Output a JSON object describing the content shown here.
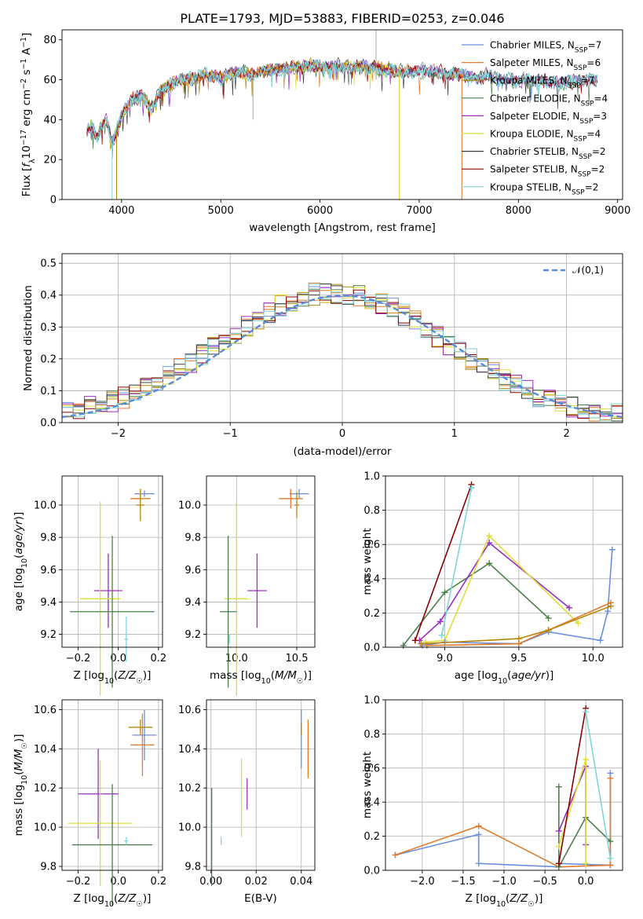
{
  "figure_title": "PLATE=1793, MJD=53883, FIBERID=0253, z=0.046",
  "series_colors": [
    "#6b8fdc",
    "#e27b2a",
    "#b8860b",
    "#4c7f4c",
    "#9b2dc0",
    "#dede3a",
    "#3c3c3c",
    "#8b0000",
    "#7fd6d6"
  ],
  "legend_entries": [
    {
      "label": "Chabrier MILES, N",
      "sub": "SSP",
      "suffix": "=7"
    },
    {
      "label": "Salpeter MILES, N",
      "sub": "SSP",
      "suffix": "=6"
    },
    {
      "label": "Kroupa MILES, N",
      "sub": "SSP",
      "suffix": "=7"
    },
    {
      "label": "Chabrier ELODIE, N",
      "sub": "SSP",
      "suffix": "=4"
    },
    {
      "label": "Salpeter ELODIE, N",
      "sub": "SSP",
      "suffix": "=3"
    },
    {
      "label": "Kroupa ELODIE, N",
      "sub": "SSP",
      "suffix": "=4"
    },
    {
      "label": "Chabrier STELIB, N",
      "sub": "SSP",
      "suffix": "=2"
    },
    {
      "label": "Salpeter STELIB, N",
      "sub": "SSP",
      "suffix": "=2"
    },
    {
      "label": "Kroupa STELIB, N",
      "sub": "SSP",
      "suffix": "=2"
    }
  ],
  "chart_data": [
    {
      "type": "line",
      "xlabel": "wavelength [Angstrom, rest frame]",
      "ylabel": "Flux [f_λ 10^-17 erg cm^-2 s^-1 A^-1]",
      "xlim": [
        3400,
        9050
      ],
      "ylim": [
        0,
        85
      ],
      "xticks": [
        "4000",
        "5000",
        "6000",
        "7000",
        "8000",
        "9000"
      ],
      "yticks": [
        "0",
        "20",
        "40",
        "60",
        "80"
      ],
      "spectrum": {
        "x": [
          3650,
          3700,
          3750,
          3800,
          3850,
          3900,
          3950,
          4000,
          4100,
          4200,
          4300,
          4400,
          4500,
          4600,
          4700,
          4800,
          4900,
          5000,
          5100,
          5200,
          5300,
          5400,
          5500,
          5600,
          5700,
          5800,
          5900,
          6000,
          6100,
          6200,
          6300,
          6400,
          6500,
          6600,
          6700,
          6800,
          6900,
          7000,
          7100,
          7200,
          7300,
          7400,
          7500,
          7600,
          7700,
          7800,
          7900,
          8000,
          8100,
          8200,
          8300,
          8400,
          8500,
          8600,
          8700,
          8800
        ],
        "y": [
          34,
          38,
          30,
          36,
          40,
          28,
          34,
          42,
          50,
          52,
          46,
          55,
          58,
          60,
          60,
          62,
          62,
          61,
          63,
          64,
          63,
          64,
          65,
          66,
          66,
          66,
          67,
          67,
          66,
          67,
          66,
          67,
          66,
          66,
          65,
          64,
          64,
          65,
          64,
          64,
          63,
          63,
          62,
          61,
          62,
          60,
          60,
          59,
          60,
          59,
          59,
          58,
          58,
          60,
          60,
          60
        ]
      },
      "legend_position": "upper right",
      "grid": false
    },
    {
      "type": "line",
      "xlabel": "(data-model)/error",
      "ylabel": "Normed distribution",
      "xlim": [
        -2.5,
        2.5
      ],
      "ylim": [
        0,
        0.53
      ],
      "xticks": [
        "−2",
        "−1",
        "0",
        "1",
        "2"
      ],
      "yticks": [
        "0.0",
        "0.1",
        "0.2",
        "0.3",
        "0.4",
        "0.5"
      ],
      "reference_curve": {
        "name": "𝒩(0,1)",
        "mean": 0,
        "sigma": 1
      },
      "legend_position": "upper right",
      "grid": true
    },
    {
      "type": "scatter",
      "xlabel": "Z [log10(Z/Z☉)]",
      "ylabel": "age [log10(age/yr)]",
      "xlim": [
        -0.28,
        0.22
      ],
      "ylim": [
        9.12,
        10.18
      ],
      "xticks": [
        "−0.2",
        "0.0",
        "0.2"
      ],
      "yticks": [
        "9.2",
        "9.4",
        "9.6",
        "9.8",
        "10.0"
      ],
      "grid": true,
      "errorbars": [
        {
          "series": 0,
          "x": 0.13,
          "xerr": 0.05,
          "y": 10.07,
          "yerr": 0.02
        },
        {
          "series": 1,
          "x": 0.11,
          "xerr": 0.05,
          "y": 10.04,
          "yerr": 0.06
        },
        {
          "series": 4,
          "x": -0.05,
          "xerr": 0.07,
          "y": 9.47,
          "yerr": 0.23
        },
        {
          "series": 5,
          "x": -0.09,
          "xerr": 0.1,
          "y": 9.42,
          "yerr": 0.6
        },
        {
          "series": 3,
          "x": -0.03,
          "xerr": 0.21,
          "y": 9.34,
          "yerr": 0.47
        },
        {
          "series": 8,
          "x": 0.04,
          "xerr": 0.01,
          "y": 9.17,
          "yerr": 0.14
        },
        {
          "series": 2,
          "x": 0.11,
          "xerr": 0.02,
          "y": 10.0,
          "yerr": 0.1
        }
      ]
    },
    {
      "type": "scatter",
      "xlabel": "mass [log10(M/M☉)]",
      "ylabel": "",
      "xlim": [
        9.75,
        10.65
      ],
      "ylim": [
        9.12,
        10.18
      ],
      "xticks": [
        "10.0",
        "10.5"
      ],
      "yticks": [
        "9.2",
        "9.4",
        "9.6",
        "9.8",
        "10.0"
      ],
      "grid": true,
      "errorbars": [
        {
          "series": 0,
          "x": 10.52,
          "xerr": 0.08,
          "y": 10.07,
          "yerr": 0.03
        },
        {
          "series": 1,
          "x": 10.45,
          "xerr": 0.1,
          "y": 10.04,
          "yerr": 0.06
        },
        {
          "series": 2,
          "x": 10.5,
          "xerr": 0.02,
          "y": 10.0,
          "yerr": 0.08
        },
        {
          "series": 4,
          "x": 10.17,
          "xerr": 0.08,
          "y": 9.47,
          "yerr": 0.23
        },
        {
          "series": 5,
          "x": 10.0,
          "xerr": 0.1,
          "y": 9.42,
          "yerr": 0.6
        },
        {
          "series": 3,
          "x": 9.93,
          "xerr": 0.07,
          "y": 9.34,
          "yerr": 0.47
        },
        {
          "series": 8,
          "x": 9.94,
          "xerr": 0.005,
          "y": 9.17,
          "yerr": 0.03
        }
      ]
    },
    {
      "type": "line",
      "xlabel": "age [log10(age/yr)]",
      "ylabel": "mass weight",
      "xlim": [
        8.6,
        10.2
      ],
      "ylim": [
        0,
        1.0
      ],
      "xticks": [
        "9.0",
        "9.5",
        "10.0"
      ],
      "yticks": [
        "0.0",
        "0.2",
        "0.4",
        "0.6",
        "0.8",
        "1.0"
      ],
      "grid": true,
      "series": [
        {
          "series": 3,
          "x": [
            8.72,
            9.0,
            9.3,
            9.7
          ],
          "y": [
            0.01,
            0.32,
            0.49,
            0.17
          ]
        },
        {
          "series": 4,
          "x": [
            8.83,
            8.97,
            9.3,
            9.84
          ],
          "y": [
            0.04,
            0.15,
            0.61,
            0.23
          ]
        },
        {
          "series": 5,
          "x": [
            8.87,
            9.0,
            9.3,
            9.9
          ],
          "y": [
            0.03,
            0.04,
            0.65,
            0.14
          ]
        },
        {
          "series": 7,
          "x": [
            8.8,
            9.18
          ],
          "y": [
            0.04,
            0.95
          ]
        },
        {
          "series": 8,
          "x": [
            8.98,
            9.18
          ],
          "y": [
            0.07,
            0.93
          ]
        },
        {
          "series": 0,
          "x": [
            8.85,
            9.0,
            9.5,
            9.7,
            10.05,
            10.1,
            10.13
          ],
          "y": [
            0.01,
            0.03,
            0.02,
            0.09,
            0.04,
            0.21,
            0.57
          ]
        },
        {
          "series": 1,
          "x": [
            8.88,
            9.5,
            9.7,
            10.12
          ],
          "y": [
            0.01,
            0.02,
            0.1,
            0.26
          ]
        },
        {
          "series": 2,
          "x": [
            8.84,
            9.5,
            9.7,
            10.12
          ],
          "y": [
            0.02,
            0.05,
            0.1,
            0.24
          ]
        }
      ]
    },
    {
      "type": "scatter",
      "xlabel": "Z [log10(Z/Z☉)]",
      "ylabel": "mass [log10(M/M☉)]",
      "xlim": [
        -0.28,
        0.22
      ],
      "ylim": [
        9.78,
        10.65
      ],
      "xticks": [
        "−0.2",
        "0.0",
        "0.2"
      ],
      "yticks": [
        "9.8",
        "10.0",
        "10.2",
        "10.4",
        "10.6"
      ],
      "grid": true,
      "errorbars": [
        {
          "series": 0,
          "x": 0.13,
          "xerr": 0.06,
          "y": 10.47,
          "yerr": 0.13
        },
        {
          "series": 1,
          "x": 0.12,
          "xerr": 0.06,
          "y": 10.42,
          "yerr": 0.16
        },
        {
          "series": 2,
          "x": 0.11,
          "xerr": 0.06,
          "y": 10.51,
          "yerr": 0.04
        },
        {
          "series": 4,
          "x": -0.1,
          "xerr": 0.1,
          "y": 10.17,
          "yerr": 0.23
        },
        {
          "series": 5,
          "x": -0.09,
          "xerr": 0.16,
          "y": 10.02,
          "yerr": 0.32
        },
        {
          "series": 3,
          "x": -0.03,
          "xerr": 0.2,
          "y": 9.91,
          "yerr": 0.31
        },
        {
          "series": 8,
          "x": 0.04,
          "xerr": 0.01,
          "y": 9.93,
          "yerr": 0.02
        }
      ]
    },
    {
      "type": "scatter",
      "xlabel": "E(B-V)",
      "ylabel": "",
      "xlim": [
        -0.002,
        0.046
      ],
      "ylim": [
        9.78,
        10.65
      ],
      "xticks": [
        "0.00",
        "0.02",
        "0.04"
      ],
      "yticks": [
        "9.8",
        "10.0",
        "10.2",
        "10.4",
        "10.6"
      ],
      "grid": true,
      "errorbars": [
        {
          "series": 0,
          "x": 0.04,
          "y": 10.45,
          "yerr": 0.15
        },
        {
          "series": 2,
          "x": 0.04,
          "y": 10.5,
          "yerr": 0.03
        },
        {
          "series": 1,
          "x": 0.043,
          "y": 10.4,
          "yerr": 0.15
        },
        {
          "series": 4,
          "x": 0.016,
          "y": 10.17,
          "yerr": 0.08
        },
        {
          "series": 5,
          "x": 0.0135,
          "y": 10.15,
          "yerr": 0.2
        },
        {
          "series": 3,
          "x": 0.0003,
          "y": 9.95,
          "yerr": 0.25
        },
        {
          "series": 8,
          "x": 0.0045,
          "y": 9.93,
          "yerr": 0.02
        }
      ]
    },
    {
      "type": "line",
      "xlabel": "Z [log10(Z/Z☉)]",
      "ylabel": "mass weight",
      "xlim": [
        -2.45,
        0.45
      ],
      "ylim": [
        0,
        1.0
      ],
      "xticks": [
        "−2.0",
        "−1.5",
        "−1.0",
        "−0.5",
        "0.0"
      ],
      "yticks": [
        "0.0",
        "0.2",
        "0.4",
        "0.6",
        "0.8",
        "1.0"
      ],
      "grid": true,
      "series": [
        {
          "series": 0,
          "x": [
            -2.33,
            -1.31,
            -1.31,
            -0.33,
            -0.33,
            0.3,
            0.3
          ],
          "y": [
            0.09,
            0.21,
            0.04,
            0.02,
            0.04,
            0.03,
            0.57
          ]
        },
        {
          "series": 1,
          "x": [
            -2.33,
            -1.31,
            -0.33,
            0.3,
            0.3
          ],
          "y": [
            0.09,
            0.26,
            0.02,
            0.03,
            0.54
          ]
        },
        {
          "series": 3,
          "x": [
            -0.33,
            -0.33,
            0.0,
            0.3
          ],
          "y": [
            0.49,
            0.02,
            0.31,
            0.17
          ]
        },
        {
          "series": 4,
          "x": [
            -0.33,
            0.0,
            0.0
          ],
          "y": [
            0.23,
            0.61,
            0.15
          ]
        },
        {
          "series": 5,
          "x": [
            -0.33,
            0.0,
            0.0
          ],
          "y": [
            0.14,
            0.65,
            0.04
          ]
        },
        {
          "series": 7,
          "x": [
            -0.33,
            0.0
          ],
          "y": [
            0.04,
            0.95
          ]
        },
        {
          "series": 8,
          "x": [
            0.0,
            0.3
          ],
          "y": [
            0.93,
            0.07
          ]
        }
      ]
    }
  ]
}
